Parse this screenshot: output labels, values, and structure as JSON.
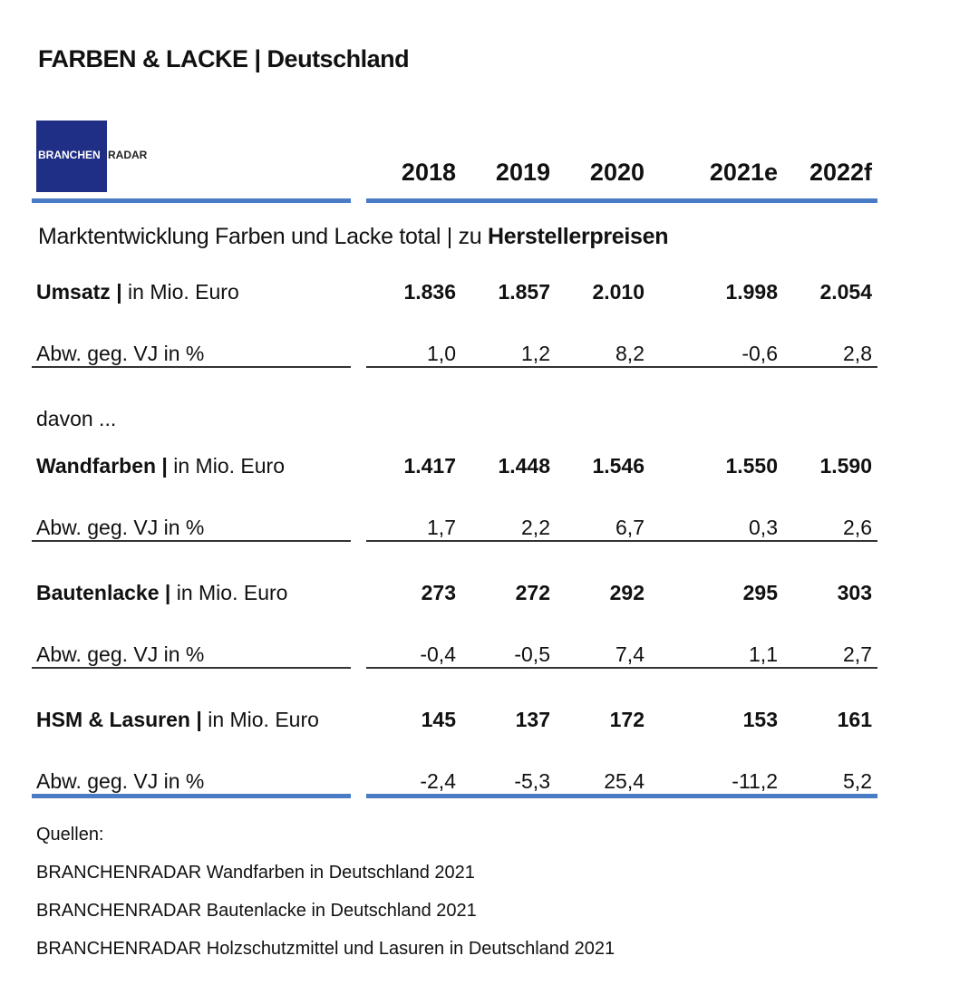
{
  "title": "FARBEN & LACKE | Deutschland",
  "logo": {
    "left": "BRANCHEN",
    "right": "RADAR"
  },
  "table": {
    "columns": [
      "2018",
      "2019",
      "2020",
      "2021e",
      "2022f"
    ],
    "subtitle": {
      "text": "Marktentwicklung Farben und Lacke total | zu",
      "bold": "Herstellerpreisen"
    },
    "total": {
      "heading": "Umsatz |",
      "unit": "in Mio. Euro",
      "values": [
        "1.836",
        "1.857",
        "2.010",
        "1.998",
        "2.054"
      ],
      "change_label": "Abw. geg. VJ in %",
      "changes": [
        "1,0",
        "1,2",
        "8,2",
        "-0,6",
        "2,8"
      ]
    },
    "subheading": "davon ...",
    "sections": [
      {
        "heading": "Wandfarben |",
        "unit": "in Mio. Euro",
        "values": [
          "1.417",
          "1.448",
          "1.546",
          "1.550",
          "1.590"
        ],
        "change_label": "Abw. geg. VJ in %",
        "changes": [
          "1,7",
          "2,2",
          "6,7",
          "0,3",
          "2,6"
        ]
      },
      {
        "heading": "Bautenlacke |",
        "unit": "in Mio. Euro",
        "values": [
          "273",
          "272",
          "292",
          "295",
          "303"
        ],
        "change_label": "Abw. geg. VJ in %",
        "changes": [
          "-0,4",
          "-0,5",
          "7,4",
          "1,1",
          "2,7"
        ]
      },
      {
        "heading": "HSM & Lasuren |",
        "unit": "in Mio. Euro",
        "values": [
          "145",
          "137",
          "172",
          "153",
          "161"
        ],
        "change_label": "Abw. geg. VJ in %",
        "changes": [
          "-2,4",
          "-5,3",
          "25,4",
          "-11,2",
          "5,2"
        ]
      }
    ]
  },
  "sources": {
    "heading": "Quellen:",
    "items": [
      "BRANCHENRADAR Wandfarben in Deutschland 2021",
      "BRANCHENRADAR Bautenlacke in Deutschland 2021",
      "BRANCHENRADAR Holzschutzmittel und Lasuren in Deutschland 2021"
    ]
  }
}
